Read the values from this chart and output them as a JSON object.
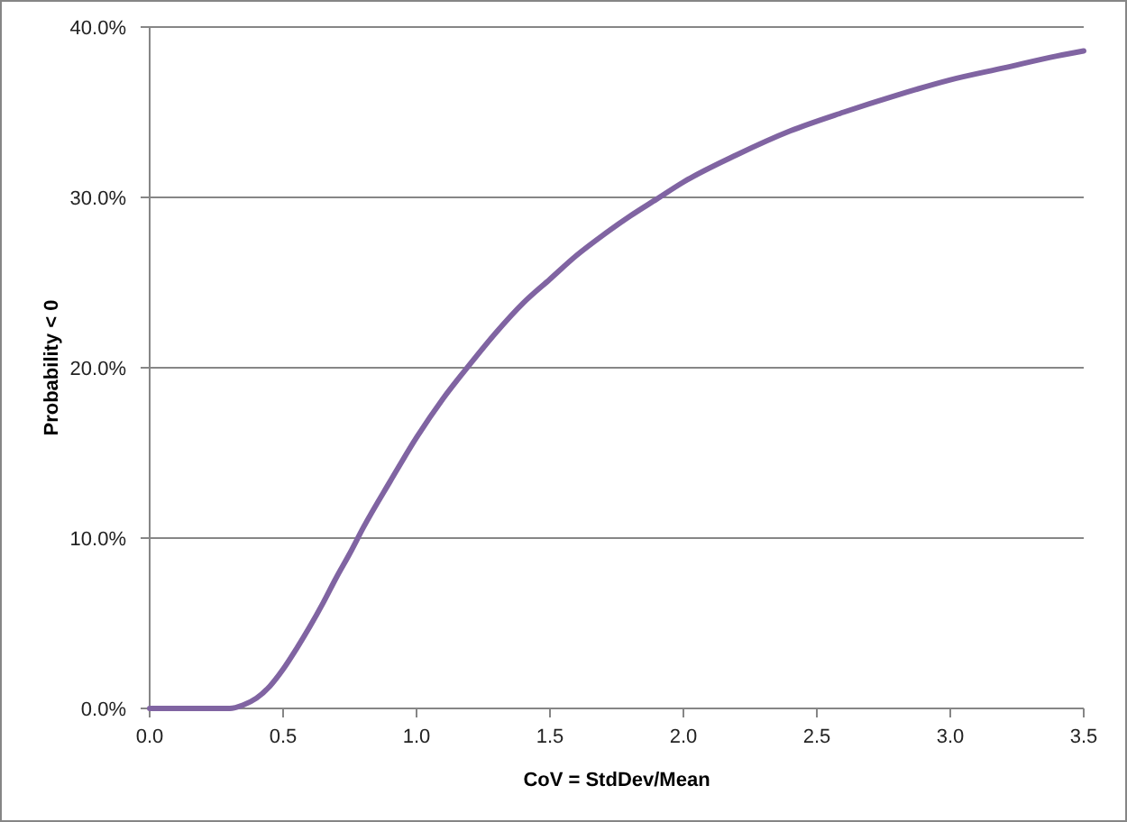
{
  "chart_data": {
    "type": "line",
    "xlabel": "CoV = StdDev/Mean",
    "ylabel": "Probability < 0",
    "x": [
      0,
      0.1,
      0.2,
      0.25,
      0.3,
      0.35,
      0.4,
      0.45,
      0.5,
      0.55,
      0.6,
      0.65,
      0.7,
      0.75,
      0.8,
      0.9,
      1.0,
      1.1,
      1.2,
      1.3,
      1.4,
      1.5,
      1.6,
      1.7,
      1.8,
      1.9,
      2.0,
      2.2,
      2.4,
      2.6,
      2.8,
      3.0,
      3.2,
      3.4,
      3.5
    ],
    "series": [
      {
        "color": "#8064a2",
        "values": [
          0,
          0,
          0,
          0,
          0,
          0.2,
          0.6,
          1.3,
          2.3,
          3.5,
          4.8,
          6.2,
          7.7,
          9.1,
          10.6,
          13.3,
          15.9,
          18.2,
          20.2,
          22.1,
          23.8,
          25.2,
          26.6,
          27.8,
          28.9,
          29.9,
          30.9,
          32.5,
          33.9,
          35.0,
          36.0,
          36.9,
          37.6,
          38.3,
          38.6
        ]
      }
    ],
    "xlim": [
      0,
      3.5
    ],
    "xticks": [
      {
        "value": 0,
        "label": "0.0"
      },
      {
        "value": 0.5,
        "label": "0.5"
      },
      {
        "value": 1,
        "label": "1.0"
      },
      {
        "value": 1.5,
        "label": "1.5"
      },
      {
        "value": 2,
        "label": "2.0"
      },
      {
        "value": 2.5,
        "label": "2.5"
      },
      {
        "value": 3,
        "label": "3.0"
      },
      {
        "value": 3.5,
        "label": "3.5"
      }
    ],
    "ylim": [
      0,
      40
    ],
    "yticks": [
      {
        "value": 0,
        "label": "0.0%"
      },
      {
        "value": 10,
        "label": "10.0%"
      },
      {
        "value": 20,
        "label": "20.0%"
      },
      {
        "value": 30,
        "label": "30.0%"
      },
      {
        "value": 40,
        "label": "40.0%"
      }
    ],
    "grid": "y",
    "marker": "none",
    "line_style": "solid"
  }
}
